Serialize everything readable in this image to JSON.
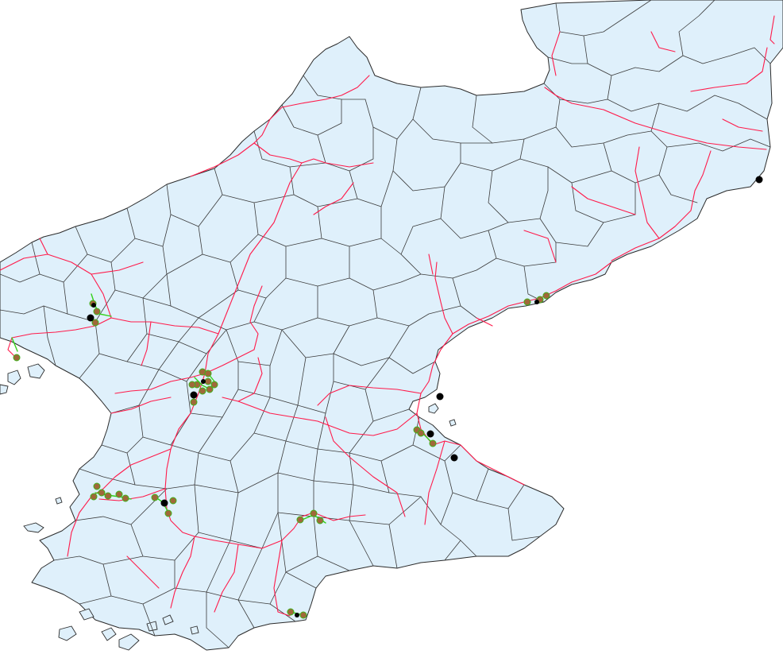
{
  "colors": {
    "water": "#ffffff",
    "land": "#dff0fb",
    "border": "#3a3a3a",
    "railway": "#ff1a4a",
    "tramway": "#33d11a",
    "station_fill": "#a0683a",
    "station_ring": "#3fb21a",
    "terminal": "#000000"
  },
  "layers": {
    "base": "land-base",
    "borders": "district-borders",
    "rail": "railway-network",
    "tram": "tram-lines",
    "stations": "station-markers",
    "terminals": "terminal-markers"
  }
}
